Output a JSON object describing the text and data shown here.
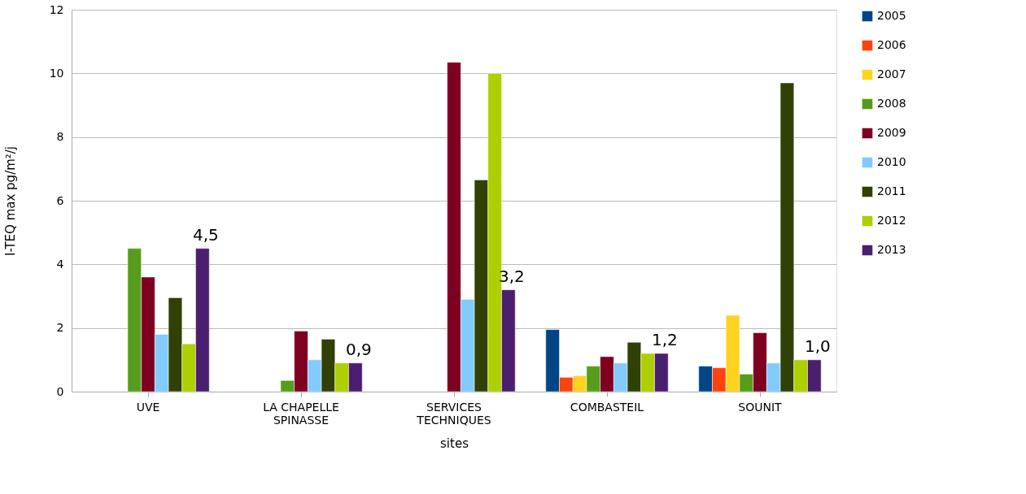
{
  "chart_data": {
    "type": "bar",
    "xlabel": "sites",
    "ylabel": "I-TEQ max pg/m²/j",
    "categories": [
      "UVE",
      "LA CHAPELLE SPINASSE",
      "SERVICES TECHNIQUES",
      "COMBASTEIL",
      "SOUNIT"
    ],
    "series": [
      {
        "name": "2005",
        "color": "#004586",
        "values": [
          null,
          null,
          null,
          1.95,
          0.8
        ]
      },
      {
        "name": "2006",
        "color": "#ff420e",
        "values": [
          null,
          null,
          null,
          0.45,
          0.75
        ]
      },
      {
        "name": "2007",
        "color": "#ffd320",
        "values": [
          null,
          null,
          null,
          0.5,
          2.4
        ]
      },
      {
        "name": "2008",
        "color": "#579d1c",
        "values": [
          4.5,
          0.35,
          null,
          0.8,
          0.55
        ]
      },
      {
        "name": "2009",
        "color": "#7e0021",
        "values": [
          3.6,
          1.9,
          10.35,
          1.1,
          1.85
        ]
      },
      {
        "name": "2010",
        "color": "#83caff",
        "values": [
          1.8,
          1.0,
          2.9,
          0.9,
          0.9
        ]
      },
      {
        "name": "2011",
        "color": "#314004",
        "values": [
          2.95,
          1.65,
          6.65,
          1.55,
          9.7
        ]
      },
      {
        "name": "2012",
        "color": "#aecf00",
        "values": [
          1.5,
          0.9,
          10.0,
          1.2,
          1.0
        ]
      },
      {
        "name": "2013",
        "color": "#4b1f6f",
        "values": [
          4.5,
          0.9,
          3.2,
          1.2,
          1.0
        ],
        "value_labels": [
          "4,5",
          "0,9",
          "3,2",
          "1,2",
          "1,0"
        ]
      }
    ],
    "ylim": [
      0,
      12
    ],
    "yticks": [
      0,
      2,
      4,
      6,
      8,
      10,
      12
    ],
    "grid": "y",
    "legend": "right"
  }
}
